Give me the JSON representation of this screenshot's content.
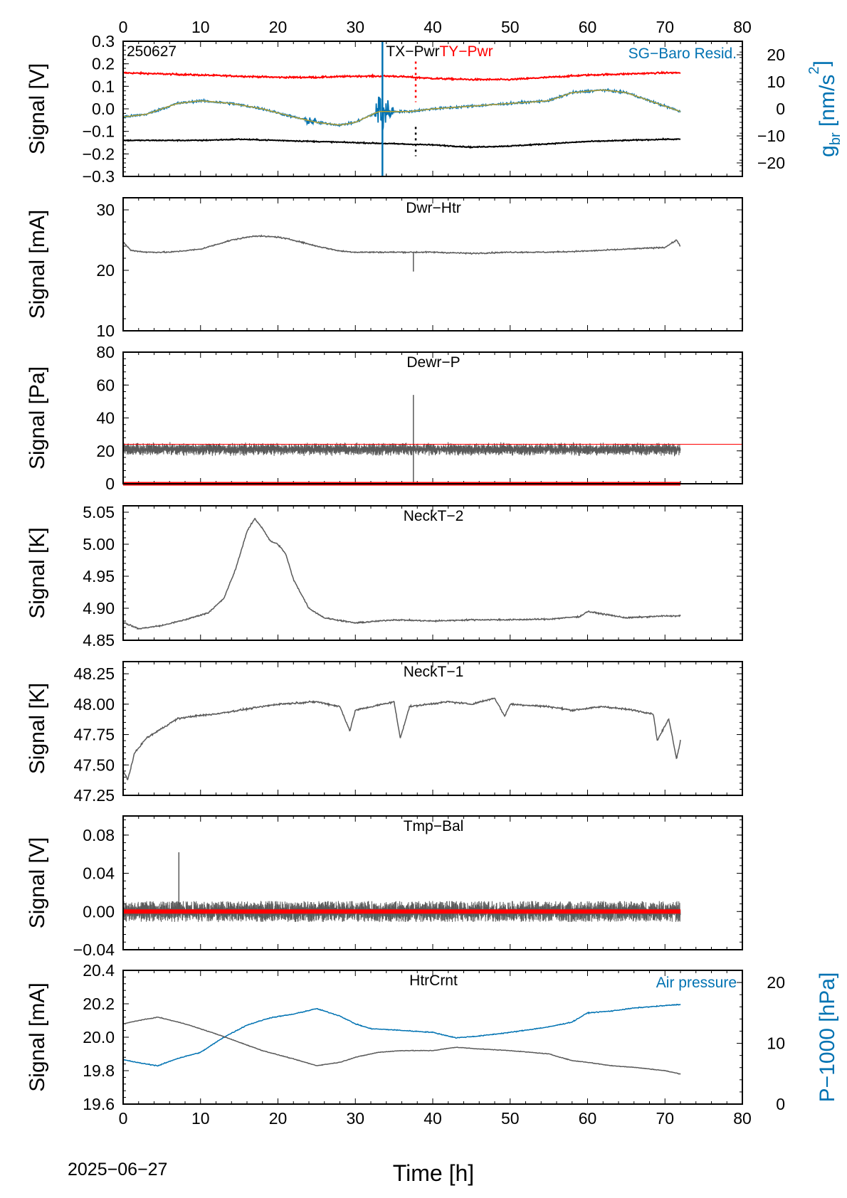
{
  "figure": {
    "date_label": "2025−06−27",
    "xlabel": "Time [h]",
    "xlim": [
      0,
      80
    ],
    "xticks": [
      0,
      10,
      20,
      30,
      40,
      50,
      60,
      70,
      80
    ]
  },
  "chart_data": [
    {
      "type": "line",
      "title": "TX−Pwr",
      "title2": "TY−Pwr",
      "corner_label": "250627",
      "right_legend": "SG−Baro Resid.",
      "ylabel": "Signal [V]",
      "ylim": [
        -0.3,
        0.3
      ],
      "yticks": [
        "-0.3",
        "-0.2",
        "-0.1",
        "0.0",
        "0.1",
        "0.2",
        "0.3"
      ],
      "y2label_main": "g",
      "y2label_sub": "br",
      "y2label_unit": " [nm/s",
      "y2label_sup": "2",
      "y2label_end": "]",
      "y2lim": [
        -25,
        25
      ],
      "y2ticks": [
        "-20",
        "-10",
        "0",
        "10",
        "20"
      ],
      "colors": {
        "tx": "#000000",
        "ty": "#ff0000",
        "sg": "#0072b2",
        "fit": "#b8a030"
      },
      "series": [
        {
          "name": "TX−Pwr",
          "axis": "left",
          "x": [
            0,
            5,
            10,
            15,
            20,
            25,
            30,
            35,
            40,
            45,
            50,
            55,
            60,
            65,
            70,
            72
          ],
          "y": [
            -0.14,
            -0.14,
            -0.14,
            -0.135,
            -0.14,
            -0.145,
            -0.15,
            -0.155,
            -0.16,
            -0.17,
            -0.165,
            -0.155,
            -0.145,
            -0.14,
            -0.135,
            -0.135
          ]
        },
        {
          "name": "TY−Pwr",
          "axis": "left",
          "x": [
            0,
            5,
            10,
            15,
            20,
            25,
            30,
            35,
            40,
            45,
            50,
            55,
            60,
            65,
            70,
            72
          ],
          "y": [
            0.16,
            0.155,
            0.15,
            0.145,
            0.14,
            0.14,
            0.145,
            0.145,
            0.135,
            0.13,
            0.13,
            0.14,
            0.15,
            0.155,
            0.16,
            0.16
          ]
        },
        {
          "name": "SG−Baro Resid.",
          "axis": "right",
          "x": [
            0,
            3,
            7,
            10,
            14,
            18,
            22,
            25,
            28,
            30,
            33,
            37,
            40,
            45,
            50,
            55,
            58,
            62,
            65,
            68,
            70,
            72
          ],
          "y": [
            -3,
            -2,
            2,
            3,
            2,
            0,
            -3,
            -5,
            -6,
            -5,
            -1,
            -1,
            0,
            1,
            2,
            3,
            6,
            7,
            6,
            3,
            1,
            -1
          ]
        }
      ]
    },
    {
      "type": "line",
      "title": "Dwr−Htr",
      "ylabel": "Signal [mA]",
      "ylim": [
        10,
        32
      ],
      "yticks": [
        "10",
        "20",
        "30"
      ],
      "colors": {
        "main": "#595959"
      },
      "series": [
        {
          "name": "Dwr−Htr",
          "x": [
            0,
            1,
            3,
            6,
            10,
            14,
            17,
            20,
            22,
            25,
            28,
            30,
            35,
            40,
            45,
            50,
            55,
            60,
            65,
            70,
            71.5,
            72
          ],
          "y": [
            24.7,
            23.3,
            23,
            23,
            23.5,
            25,
            25.7,
            25.5,
            25,
            24,
            23.2,
            23,
            23,
            23,
            22.8,
            23,
            23,
            23.2,
            23.5,
            23.8,
            25,
            24
          ]
        }
      ]
    },
    {
      "type": "line",
      "title": "Dewr−P",
      "ylabel": "Signal [Pa]",
      "ylim": [
        0,
        80
      ],
      "yticks": [
        "0",
        "20",
        "40",
        "60",
        "80"
      ],
      "reference_line": 24,
      "zero_line": 0,
      "colors": {
        "main": "#595959",
        "ref": "#ff0000"
      },
      "series": [
        {
          "name": "Dewr−P",
          "mean": 21,
          "spread": 7,
          "spike_x": 37.5,
          "spike_y": 54
        }
      ]
    },
    {
      "type": "line",
      "title": "NeckT−2",
      "ylabel": "Signal [K]",
      "ylim": [
        4.85,
        5.06
      ],
      "yticks": [
        "4.85",
        "4.90",
        "4.95",
        "5.00",
        "5.05"
      ],
      "colors": {
        "main": "#595959"
      },
      "series": [
        {
          "name": "NeckT−2",
          "x": [
            0,
            2,
            5,
            8,
            11,
            13,
            14.5,
            16,
            17,
            18,
            19,
            20,
            21,
            22,
            24,
            26,
            30,
            35,
            40,
            45,
            50,
            55,
            59,
            60,
            65,
            70,
            72
          ],
          "y": [
            4.878,
            4.868,
            4.873,
            4.882,
            4.893,
            4.915,
            4.96,
            5.02,
            5.04,
            5.025,
            5.005,
            5.0,
            4.985,
            4.945,
            4.9,
            4.885,
            4.877,
            4.882,
            4.88,
            4.882,
            4.882,
            4.883,
            4.887,
            4.895,
            4.885,
            4.888,
            4.888
          ]
        }
      ]
    },
    {
      "type": "line",
      "title": "NeckT−1",
      "ylabel": "Signal [K]",
      "ylim": [
        47.25,
        48.35
      ],
      "yticks": [
        "47.25",
        "47.50",
        "47.75",
        "48.00",
        "48.25"
      ],
      "colors": {
        "main": "#595959"
      },
      "series": [
        {
          "name": "NeckT−1",
          "x": [
            0,
            0.6,
            1.5,
            3,
            5,
            7,
            9,
            12,
            15,
            20,
            25,
            28,
            29.3,
            30,
            35,
            35.8,
            37,
            42,
            45,
            48,
            49.3,
            50,
            55,
            58,
            62,
            66,
            68.5,
            69,
            70.5,
            71.5,
            72
          ],
          "y": [
            47.45,
            47.38,
            47.6,
            47.72,
            47.8,
            47.88,
            47.9,
            47.92,
            47.95,
            48.0,
            48.02,
            47.98,
            47.78,
            47.95,
            48.02,
            47.72,
            47.98,
            48.02,
            48.0,
            48.05,
            47.9,
            48.0,
            47.98,
            47.95,
            47.98,
            47.95,
            47.92,
            47.7,
            47.88,
            47.55,
            47.7
          ]
        }
      ]
    },
    {
      "type": "line",
      "title": "Tmp−Bal",
      "ylabel": "Signal [V]",
      "ylim": [
        -0.04,
        0.1
      ],
      "yticks": [
        "−0.04",
        "0.00",
        "0.04",
        "0.08"
      ],
      "zero_line": 0,
      "colors": {
        "main": "#595959",
        "ref": "#ff0000"
      },
      "series": [
        {
          "name": "Tmp−Bal",
          "mean": 0.0,
          "spread": 0.02,
          "spike_x": 7.2,
          "spike_y": 0.062
        }
      ]
    },
    {
      "type": "line",
      "title": "HtrCrnt",
      "right_legend": "Air pressure",
      "ylabel": "Signal [mA]",
      "ylim": [
        19.6,
        20.4
      ],
      "yticks": [
        "19.6",
        "19.8",
        "20.0",
        "20.2",
        "20.4"
      ],
      "y2label": "P−1000 [hPa]",
      "y2lim": [
        0,
        22
      ],
      "y2ticks": [
        "0",
        "10",
        "20"
      ],
      "colors": {
        "main": "#595959",
        "air": "#0072b2"
      },
      "series": [
        {
          "name": "HtrCrnt",
          "axis": "left",
          "x": [
            0,
            2,
            4.5,
            8,
            12,
            15,
            18,
            22,
            25,
            28,
            30,
            33,
            36,
            40,
            43,
            46,
            50,
            55,
            58,
            60,
            63,
            66,
            70,
            72
          ],
          "y": [
            20.08,
            20.1,
            20.12,
            20.08,
            20.02,
            19.97,
            19.92,
            19.87,
            19.83,
            19.85,
            19.88,
            19.91,
            19.92,
            19.92,
            19.94,
            19.93,
            19.92,
            19.9,
            19.86,
            19.85,
            19.83,
            19.82,
            19.8,
            19.78
          ]
        },
        {
          "name": "Air pressure",
          "axis": "right",
          "x": [
            0,
            2,
            4.5,
            7,
            10,
            13,
            16,
            19,
            22,
            25,
            28,
            30,
            32,
            35,
            40,
            43,
            46,
            50,
            55,
            58,
            60,
            63,
            66,
            70,
            72
          ],
          "y": [
            7.3,
            6.8,
            6.3,
            7.5,
            8.5,
            11,
            13,
            14.2,
            14.8,
            15.7,
            14.5,
            13.2,
            12.4,
            12.2,
            11.8,
            10.9,
            11.2,
            11.8,
            12.7,
            13.5,
            15,
            15.3,
            15.8,
            16.2,
            16.4
          ]
        }
      ]
    }
  ]
}
